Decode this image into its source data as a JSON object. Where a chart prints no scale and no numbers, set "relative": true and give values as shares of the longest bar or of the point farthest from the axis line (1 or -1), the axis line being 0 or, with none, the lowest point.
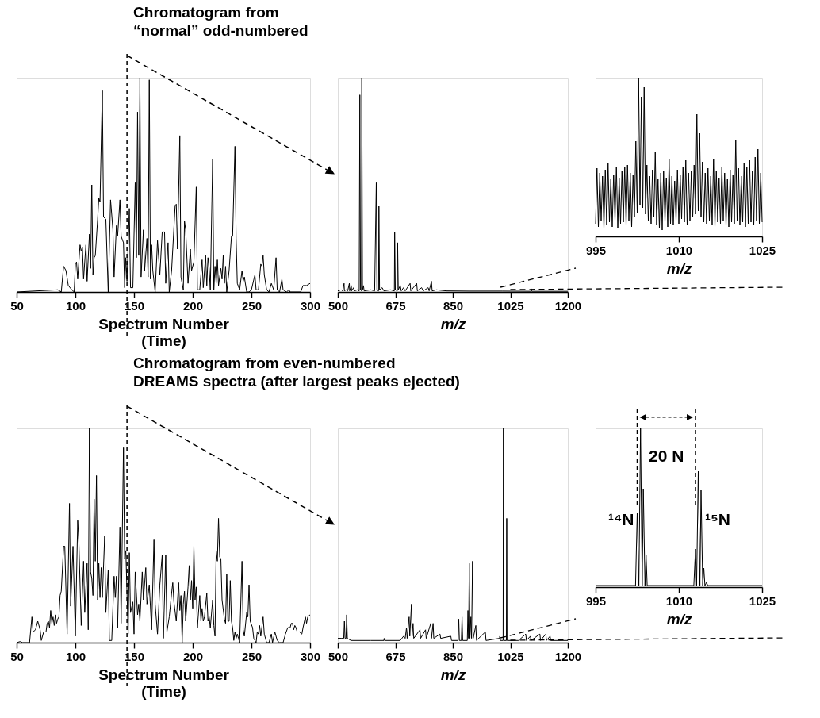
{
  "chart_data": [
    {
      "type": "line",
      "relative": true,
      "title": "Chromatogram from\n“normal” odd-numbered",
      "xlabel": "Spectrum Number\n(Time)",
      "xlim": [
        50,
        300
      ],
      "xticks": [
        50,
        100,
        150,
        200,
        250,
        300
      ],
      "grid": false,
      "legend": false,
      "line_style": "solid",
      "ref_lines": [
        {
          "axis": "x",
          "value": 144,
          "line_style": "dashed"
        }
      ],
      "series": [
        {
          "color": "#000000",
          "x": [
            50,
            85,
            88,
            90,
            92,
            94,
            97,
            99,
            100,
            101,
            102,
            104,
            105,
            106,
            107,
            109,
            110,
            112,
            113,
            114,
            115,
            116,
            117,
            119,
            120,
            121,
            123,
            124,
            126,
            128,
            130,
            132,
            133,
            135,
            136,
            138,
            139,
            141,
            142,
            143,
            144,
            146,
            147,
            149,
            151,
            152,
            153,
            154,
            155,
            156,
            158,
            159,
            161,
            162,
            163,
            164,
            165,
            166,
            168,
            170,
            172,
            174,
            176,
            177,
            179,
            180,
            182,
            185,
            186,
            187,
            189,
            190,
            192,
            193,
            194,
            196,
            198,
            199,
            201,
            203,
            204,
            206,
            208,
            209,
            211,
            212,
            213,
            214,
            215,
            217,
            218,
            219,
            220,
            221,
            222,
            224,
            225,
            226,
            227,
            228,
            229,
            231,
            233,
            234,
            236,
            237,
            238,
            240,
            242,
            243,
            244,
            246,
            248,
            250,
            253,
            254,
            256,
            258,
            259,
            260,
            261,
            263,
            265,
            267,
            269,
            271,
            272,
            274,
            276,
            277,
            280,
            282,
            283,
            292,
            294,
            297,
            300
          ],
          "values": [
            0,
            0.01,
            0,
            0.12,
            0.1,
            0.03,
            0.01,
            0,
            0.13,
            0.14,
            0.06,
            0.22,
            0.19,
            0.21,
            0.06,
            0.22,
            0.05,
            0.27,
            0.11,
            0.5,
            0.08,
            0.16,
            0.17,
            0.34,
            0.44,
            0.42,
            0.94,
            0.35,
            0.34,
            0,
            0.43,
            0.29,
            0.07,
            0.31,
            0.26,
            0.43,
            0.26,
            0.23,
            0.02,
            0.16,
            0.05,
            0.39,
            0.02,
            0.02,
            0.51,
            0.16,
            0.84,
            0.17,
            1.0,
            0.07,
            0.29,
            0.1,
            0.25,
            0.07,
            0.99,
            0.06,
            0.22,
            0.1,
            0,
            0.24,
            0.08,
            0.28,
            0.28,
            0.04,
            0.23,
            0,
            0.1,
            0.4,
            0.41,
            0.2,
            0.73,
            0.07,
            0.01,
            0.33,
            0.29,
            0.04,
            0.2,
            0.1,
            0.14,
            0.49,
            0.01,
            0.01,
            0.15,
            0.02,
            0.17,
            0.03,
            0.16,
            0.11,
            0.01,
            0.62,
            0.01,
            0.12,
            0.04,
            0.15,
            0.03,
            0.11,
            0.06,
            0.17,
            0.04,
            0.12,
            0,
            0.1,
            0.26,
            0.26,
            0.68,
            0.25,
            0.04,
            0.01,
            0.1,
            0.05,
            0.07,
            0,
            0,
            0.01,
            0.08,
            0.01,
            0.01,
            0.13,
            0.12,
            0.17,
            0.08,
            0.01,
            0,
            0.04,
            0.01,
            0.16,
            0.01,
            0,
            0.06,
            0.01,
            0,
            0.01,
            0,
            0,
            0.03,
            0.03,
            0.04
          ]
        }
      ]
    },
    {
      "type": "line",
      "relative": true,
      "xlabel": "m/z",
      "xlim": [
        500,
        1200
      ],
      "xticks": [
        500,
        675,
        850,
        1025,
        1200
      ],
      "grid": false,
      "legend": false,
      "line_style": "solid",
      "series": [
        {
          "color": "#000000",
          "x": [
            500,
            510,
            515,
            519,
            520,
            525,
            530,
            535,
            536,
            541,
            542,
            548,
            550,
            560,
            565,
            567,
            569,
            572,
            573,
            575,
            578,
            580,
            600,
            612,
            617,
            619,
            624,
            625,
            627,
            635,
            640,
            660,
            672,
            673,
            675,
            681,
            682,
            684,
            690,
            693,
            700,
            705,
            720,
            722,
            740,
            742,
            755,
            760,
            775,
            778,
            785,
            787,
            800,
            830,
            900,
            1000,
            1088,
            1089,
            1090,
            1200
          ],
          "values": [
            0.005,
            0.01,
            0.005,
            0.04,
            0.005,
            0.01,
            0.005,
            0.04,
            0.005,
            0.03,
            0.005,
            0.02,
            0.005,
            0.01,
            0.005,
            0.92,
            0.01,
            0.005,
            1.0,
            0.01,
            0.03,
            0.005,
            0.01,
            0.005,
            0.51,
            0.01,
            0.005,
            0.4,
            0.01,
            0.02,
            0.005,
            0.01,
            0.005,
            0.28,
            0.01,
            0.005,
            0.23,
            0.01,
            0.03,
            0.005,
            0.02,
            0.005,
            0.04,
            0.005,
            0.04,
            0.005,
            0.02,
            0.005,
            0.02,
            0.005,
            0.05,
            0.005,
            0.01,
            0.005,
            0.004,
            0.004,
            0.003,
            0.015,
            0.003,
            0.003
          ]
        }
      ]
    },
    {
      "type": "line",
      "relative": true,
      "xlabel": "m/z",
      "xlim": [
        995,
        1025
      ],
      "xticks": [
        995,
        1010,
        1025
      ],
      "grid": false,
      "legend": false,
      "line_style": "solid",
      "series": [
        {
          "color": "#000000",
          "x": [
            995,
            995.25,
            995.5,
            995.75,
            996,
            996.25,
            996.5,
            996.75,
            997,
            997.25,
            997.5,
            997.75,
            998,
            998.25,
            998.5,
            998.75,
            999,
            999.25,
            999.5,
            999.75,
            1000,
            1000.25,
            1000.5,
            1000.75,
            1001,
            1001.25,
            1001.5,
            1001.75,
            1002,
            1002.25,
            1002.5,
            1002.75,
            1003,
            1003.25,
            1003.5,
            1003.75,
            1004,
            1004.25,
            1004.5,
            1004.75,
            1005,
            1005.25,
            1005.5,
            1005.75,
            1006,
            1006.25,
            1006.5,
            1006.75,
            1007,
            1007.25,
            1007.5,
            1007.75,
            1008,
            1008.25,
            1008.5,
            1008.75,
            1009,
            1009.25,
            1009.5,
            1009.75,
            1010,
            1010.25,
            1010.5,
            1010.75,
            1011,
            1011.25,
            1011.5,
            1011.75,
            1012,
            1012.25,
            1012.5,
            1012.75,
            1013,
            1013.25,
            1013.5,
            1013.75,
            1014,
            1014.25,
            1014.5,
            1014.75,
            1015,
            1015.25,
            1015.5,
            1015.75,
            1016,
            1016.25,
            1016.5,
            1016.75,
            1017,
            1017.25,
            1017.5,
            1017.75,
            1018,
            1018.25,
            1018.5,
            1018.75,
            1019,
            1019.25,
            1019.5,
            1019.75,
            1020,
            1020.25,
            1020.5,
            1020.75,
            1021,
            1021.25,
            1021.5,
            1021.75,
            1022,
            1022.25,
            1022.5,
            1022.75,
            1023,
            1023.25,
            1023.5,
            1023.75,
            1024,
            1024.25,
            1024.5,
            1024.75,
            1025
          ],
          "values": [
            0.08,
            0.43,
            0.06,
            0.4,
            0.1,
            0.38,
            0.05,
            0.42,
            0.07,
            0.46,
            0.09,
            0.36,
            0.06,
            0.39,
            0.1,
            0.44,
            0.05,
            0.37,
            0.08,
            0.41,
            0.09,
            0.44,
            0.07,
            0.45,
            0.1,
            0.4,
            0.06,
            0.39,
            0.12,
            0.6,
            0.15,
            1.0,
            0.2,
            0.88,
            0.18,
            0.94,
            0.14,
            0.45,
            0.1,
            0.38,
            0.08,
            0.42,
            0.12,
            0.53,
            0.07,
            0.36,
            0.05,
            0.4,
            0.04,
            0.41,
            0.09,
            0.37,
            0.06,
            0.49,
            0.08,
            0.38,
            0.07,
            0.35,
            0.1,
            0.42,
            0.08,
            0.39,
            0.11,
            0.44,
            0.09,
            0.48,
            0.07,
            0.4,
            0.1,
            0.41,
            0.12,
            0.45,
            0.14,
            0.77,
            0.16,
            0.65,
            0.12,
            0.47,
            0.09,
            0.4,
            0.08,
            0.43,
            0.1,
            0.38,
            0.07,
            0.49,
            0.06,
            0.41,
            0.09,
            0.37,
            0.08,
            0.44,
            0.1,
            0.4,
            0.07,
            0.36,
            0.06,
            0.42,
            0.09,
            0.39,
            0.08,
            0.61,
            0.1,
            0.43,
            0.07,
            0.38,
            0.09,
            0.46,
            0.06,
            0.44,
            0.08,
            0.48,
            0.09,
            0.41,
            0.07,
            0.5,
            0.1,
            0.55,
            0.08,
            0.4,
            0.09
          ]
        }
      ]
    },
    {
      "type": "line",
      "relative": true,
      "title": "Chromatogram from even-numbered\nDREAMS spectra (after largest peaks ejected)",
      "xlabel": "Spectrum Number\n(Time)",
      "xlim": [
        50,
        300
      ],
      "xticks": [
        50,
        100,
        150,
        200,
        250,
        300
      ],
      "grid": false,
      "legend": false,
      "line_style": "solid",
      "ref_lines": [
        {
          "axis": "x",
          "value": 144,
          "line_style": "dashed"
        }
      ],
      "series": [
        {
          "color": "#000000",
          "x": [
            50,
            53,
            55,
            61,
            63,
            64,
            66,
            68,
            70,
            71,
            73,
            75,
            76,
            77,
            78,
            79,
            80,
            81,
            82,
            83,
            84,
            85,
            86,
            87,
            88,
            90,
            91,
            93,
            95,
            96,
            98,
            100,
            102,
            103,
            105,
            107,
            108,
            110,
            111,
            112,
            113,
            114,
            115,
            116,
            117,
            118,
            119,
            120,
            121,
            122,
            123,
            125,
            126,
            128,
            129,
            131,
            133,
            134,
            135,
            136,
            138,
            139,
            141,
            142,
            143,
            145,
            146,
            147,
            149,
            150,
            151,
            153,
            154,
            155,
            157,
            158,
            160,
            161,
            163,
            165,
            167,
            168,
            170,
            172,
            174,
            175,
            177,
            178,
            180,
            182,
            183,
            184,
            186,
            188,
            189,
            190,
            191,
            192,
            193,
            194,
            196,
            197,
            198,
            199,
            200,
            201,
            202,
            203,
            204,
            206,
            207,
            208,
            209,
            210,
            212,
            213,
            214,
            215,
            217,
            218,
            219,
            220,
            221,
            222,
            223,
            224,
            225,
            227,
            228,
            229,
            230,
            231,
            232,
            233,
            234,
            235,
            236,
            237,
            238,
            239,
            240,
            242,
            243,
            244,
            246,
            247,
            248,
            249,
            251,
            252,
            254,
            255,
            256,
            257,
            258,
            260,
            261,
            263,
            265,
            267,
            268,
            270,
            272,
            274,
            277,
            279,
            281,
            283,
            284,
            285,
            286,
            287,
            288,
            289,
            291,
            293,
            294,
            296,
            297,
            298,
            300
          ],
          "values": [
            0,
            0.005,
            0,
            0,
            0.12,
            0.05,
            0.06,
            0.1,
            0.06,
            0.01,
            0.05,
            0.05,
            0.09,
            0.1,
            0.07,
            0.15,
            0.09,
            0.12,
            0.08,
            0.13,
            0.09,
            0.11,
            0.12,
            0.22,
            0.24,
            0.45,
            0.45,
            0.04,
            0.65,
            0.17,
            0.45,
            0.03,
            0.57,
            0.47,
            0.08,
            0.38,
            0.14,
            0.37,
            0.06,
            1.0,
            0.33,
            0.3,
            0.22,
            0.67,
            0.38,
            0.78,
            0.2,
            0.37,
            0.21,
            0.35,
            0.21,
            0.5,
            0.14,
            0.34,
            0.01,
            0.01,
            0.31,
            0.21,
            0.31,
            0.07,
            0.54,
            0.09,
            0.91,
            0.39,
            0.43,
            0.04,
            0.42,
            0.14,
            0.19,
            0.04,
            0.33,
            0.13,
            0.18,
            0.1,
            0.33,
            0.2,
            0.35,
            0.18,
            0.27,
            0.06,
            0.48,
            0.18,
            0.04,
            0.27,
            0.41,
            0.02,
            0.41,
            0.05,
            0.12,
            0.23,
            0.28,
            0.19,
            0.1,
            0.28,
            0.15,
            0.22,
            0,
            0.18,
            0.24,
            0.1,
            0.26,
            0.36,
            0.2,
            0.29,
            0.16,
            0.45,
            0.2,
            0.26,
            0.07,
            0.22,
            0.1,
            0.16,
            0.1,
            0.12,
            0.23,
            0.1,
            0.12,
            0.07,
            0.2,
            0.08,
            0.03,
            0.43,
            0.38,
            0.58,
            0.4,
            0.39,
            0.2,
            0.11,
            0.09,
            0.32,
            0.1,
            0.1,
            0.29,
            0.1,
            0.07,
            0.01,
            0.05,
            0.02,
            0.04,
            0.02,
            0,
            0.38,
            0.06,
            0.03,
            0.14,
            0.12,
            0.27,
            0.1,
            0.07,
            0.02,
            0,
            0.05,
            0.04,
            0.08,
            0.03,
            0.12,
            0.04,
            0,
            0,
            0.04,
            0,
            0.05,
            0.01,
            0,
            0,
            0.04,
            0.07,
            0.07,
            0.09,
            0.09,
            0.06,
            0.08,
            0.07,
            0.05,
            0.05,
            0.04,
            0.07,
            0.12,
            0.09,
            0.12,
            0.13
          ]
        }
      ]
    },
    {
      "type": "line",
      "relative": true,
      "xlabel": "m/z",
      "xlim": [
        500,
        1200
      ],
      "xticks": [
        500,
        675,
        850,
        1025,
        1200
      ],
      "grid": false,
      "legend": false,
      "line_style": "solid",
      "series": [
        {
          "color": "#000000",
          "x": [
            500,
            510,
            518,
            520,
            522,
            525,
            527,
            529,
            540,
            600,
            640,
            641,
            642,
            690,
            700,
            705,
            709,
            711,
            717,
            719,
            724,
            726,
            729,
            731,
            750,
            752,
            767,
            769,
            783,
            785,
            790,
            792,
            811,
            813,
            844,
            846,
            866,
            868,
            870,
            876,
            878,
            880,
            894,
            896,
            898,
            900,
            902,
            905,
            907,
            910,
            912,
            920,
            922,
            949,
            951,
            992,
            993,
            995,
            1003,
            1004,
            1005,
            1013,
            1014,
            1015,
            1050,
            1072,
            1074,
            1086,
            1088,
            1115,
            1117,
            1133,
            1135,
            1146,
            1148,
            1200
          ],
          "values": [
            0.02,
            0.02,
            0.02,
            0.1,
            0.02,
            0.02,
            0.13,
            0.02,
            0.01,
            0.01,
            0.01,
            0.02,
            0.01,
            0.01,
            0.03,
            0.02,
            0.07,
            0.02,
            0.12,
            0.03,
            0.18,
            0.03,
            0.09,
            0.02,
            0.06,
            0.02,
            0.06,
            0.02,
            0.09,
            0.02,
            0.09,
            0.02,
            0.04,
            0.02,
            0.03,
            0.01,
            0.01,
            0.11,
            0.01,
            0.01,
            0.12,
            0.01,
            0.01,
            0.15,
            0.02,
            0.37,
            0.02,
            0.12,
            0.02,
            0.38,
            0.02,
            0.08,
            0.01,
            0.05,
            0.01,
            0.02,
            0.03,
            0.01,
            0.01,
            1.0,
            0.01,
            0.01,
            0.58,
            0.01,
            0.01,
            0.04,
            0.01,
            0.03,
            0.01,
            0.04,
            0.01,
            0.04,
            0.01,
            0.03,
            0.01,
            0.01
          ]
        }
      ]
    },
    {
      "type": "line",
      "relative": true,
      "xlabel": "m/z",
      "xlim": [
        995,
        1025
      ],
      "xticks": [
        995,
        1010,
        1025
      ],
      "grid": false,
      "legend": false,
      "line_style": "solid",
      "ref_lines": [
        {
          "axis": "x",
          "value": 1002.5,
          "line_style": "dashed"
        },
        {
          "axis": "x",
          "value": 1013.0,
          "line_style": "dashed"
        }
      ],
      "annotations": [
        "20 N",
        "¹⁴N",
        "¹⁵N"
      ],
      "series": [
        {
          "color": "#000000",
          "x": [
            995,
            1002.2,
            1002.5,
            1002.8,
            1003.1,
            1003.4,
            1003.6,
            1003.9,
            1004.1,
            1004.3,
            1012.7,
            1013.0,
            1013.2,
            1013.5,
            1013.8,
            1014.0,
            1014.3,
            1014.5,
            1014.7,
            1015.0,
            1015.2,
            1025
          ],
          "values": [
            0.01,
            0.01,
            0.47,
            0.01,
            1.0,
            0.01,
            0.62,
            0.01,
            0.2,
            0.01,
            0.01,
            0.24,
            0.01,
            0.73,
            0.01,
            0.61,
            0.01,
            0.12,
            0.01,
            0.03,
            0.01,
            0.01
          ]
        }
      ]
    }
  ]
}
